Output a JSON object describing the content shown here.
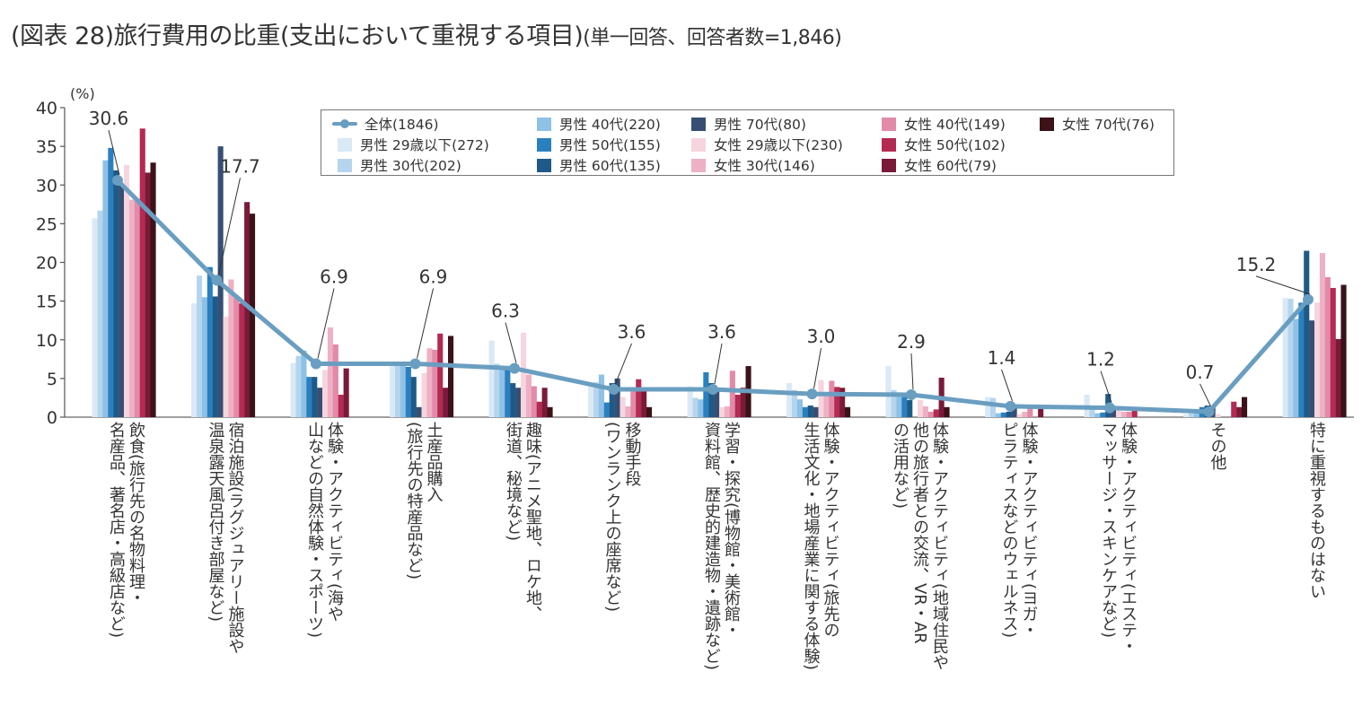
{
  "title": {
    "main": "(図表 28)旅行費用の比重(支出において重視する項目)",
    "sub": "(単一回答、回答者数=1,846)"
  },
  "chart_data": {
    "type": "bar",
    "title": "(図表 28)旅行費用の比重(支出において重視する項目)(単一回答、回答者数=1,846)",
    "ylabel": "(%)",
    "xlabel": "",
    "ylim": [
      0,
      40
    ],
    "yticks": [
      0,
      5,
      10,
      15,
      20,
      25,
      30,
      35,
      40
    ],
    "grid": false,
    "legend_position": "top-right",
    "categories": [
      "飲食(旅行先の名物料理・\n名産品、著名店・高級店など)",
      "宿泊施設(ラグジュアリー施設や\n温泉露天風呂付き部屋など)",
      "体験・アクティビティ(海や\n山などの自然体験・スポーツ)",
      "土産品購入\n(旅行先の特産品など)",
      "趣味(アニメ聖地、ロケ地、\n街道、秘境など)",
      "移動手段\n(ワンランク上の座席など)",
      "学習・探究(博物館・美術館・\n資料館、歴史的建造物・遺跡など)",
      "体験・アクティビティ(旅先の\n生活文化・地場産業に関する体験)",
      "体験・アクティビティ(地域住民や\n他の旅行者との交流、VR・AR\nの活用など)",
      "体験・アクティビティ(ヨガ・\nピラティスなどのウェルネス)",
      "体験・アクティビティ(エステ・\nマッサージ・スキンケアなど)",
      "その他",
      "特に重視するものはない"
    ],
    "line_series": {
      "name": "全体(1846)",
      "color": "#6a9ec1",
      "values": [
        30.6,
        17.7,
        6.9,
        6.9,
        6.3,
        3.6,
        3.6,
        3.0,
        2.9,
        1.4,
        1.2,
        0.7,
        15.2
      ],
      "labels": [
        "30.6",
        "17.7",
        "6.9",
        "6.9",
        "6.3",
        "3.6",
        "3.6",
        "3.0",
        "2.9",
        "1.4",
        "1.2",
        "0.7",
        "15.2"
      ]
    },
    "series": [
      {
        "name": "男性 29歳以下(272)",
        "color": "#d9e9f5",
        "values": [
          25.7,
          14.7,
          7.0,
          6.6,
          9.9,
          4.0,
          4.0,
          4.4,
          6.6,
          2.6,
          2.9,
          0.4,
          15.4
        ]
      },
      {
        "name": "男性 30代(202)",
        "color": "#b5d5ee",
        "values": [
          26.7,
          18.3,
          7.9,
          6.9,
          6.9,
          4.5,
          2.5,
          3.5,
          3.5,
          2.5,
          1.0,
          0.5,
          15.3
        ]
      },
      {
        "name": "男性 40代(220)",
        "color": "#8fc1e6",
        "values": [
          33.2,
          15.5,
          8.6,
          6.8,
          6.4,
          5.5,
          2.3,
          2.3,
          3.2,
          0.5,
          0.5,
          0.5,
          12.7
        ]
      },
      {
        "name": "男性 50代(155)",
        "color": "#2a80bf",
        "values": [
          34.8,
          19.4,
          5.2,
          6.5,
          6.5,
          1.9,
          5.8,
          1.3,
          2.6,
          0.6,
          0.6,
          1.3,
          14.8
        ]
      },
      {
        "name": "男性 60代(135)",
        "color": "#1e5a88",
        "values": [
          31.9,
          15.6,
          5.2,
          5.2,
          4.4,
          4.4,
          4.4,
          1.5,
          2.2,
          0.7,
          3.0,
          1.5,
          21.5
        ]
      },
      {
        "name": "男性 70代(80)",
        "color": "#364f73",
        "values": [
          30.0,
          35.0,
          3.8,
          1.3,
          3.8,
          5.0,
          3.8,
          1.3,
          0.0,
          1.3,
          1.3,
          1.3,
          12.5
        ]
      },
      {
        "name": "女性 29歳以下(230)",
        "color": "#f6d5df",
        "values": [
          32.6,
          13.0,
          6.1,
          5.7,
          10.9,
          2.6,
          1.3,
          4.8,
          2.2,
          0.4,
          0.9,
          0.4,
          14.8
        ]
      },
      {
        "name": "女性 30代(146)",
        "color": "#eeb0c4",
        "values": [
          28.1,
          17.8,
          11.6,
          8.9,
          5.5,
          1.4,
          1.4,
          2.7,
          1.4,
          0.7,
          0.7,
          0.0,
          21.2
        ]
      },
      {
        "name": "女性 40代(149)",
        "color": "#e28aa8",
        "values": [
          28.2,
          15.4,
          9.4,
          8.7,
          4.0,
          3.4,
          6.0,
          4.7,
          0.7,
          1.3,
          0.7,
          0.0,
          18.1
        ]
      },
      {
        "name": "女性 50代(102)",
        "color": "#b32a52",
        "values": [
          37.3,
          14.7,
          2.9,
          10.8,
          2.0,
          4.9,
          2.9,
          3.9,
          1.0,
          0.0,
          1.0,
          2.0,
          16.7
        ]
      },
      {
        "name": "女性 60代(79)",
        "color": "#7a1a38",
        "values": [
          31.6,
          27.8,
          6.3,
          3.8,
          3.8,
          3.8,
          3.8,
          3.8,
          5.1,
          1.3,
          0.0,
          1.3,
          10.1
        ]
      },
      {
        "name": "女性 70代(76)",
        "color": "#3a1218",
        "values": [
          32.9,
          26.3,
          0.0,
          10.5,
          1.3,
          1.3,
          6.6,
          1.3,
          1.3,
          0.0,
          0.0,
          2.6,
          17.1
        ]
      }
    ]
  },
  "legend": {
    "line_item": "全体(1846)",
    "items": [
      "男性 29歳以下(272)",
      "男性 30代(202)",
      "男性 40代(220)",
      "男性 50代(155)",
      "男性 60代(135)",
      "男性 70代(80)",
      "女性 29歳以下(230)",
      "女性 30代(146)",
      "女性 40代(149)",
      "女性 50代(102)",
      "女性 60代(79)",
      "女性 70代(76)"
    ]
  }
}
